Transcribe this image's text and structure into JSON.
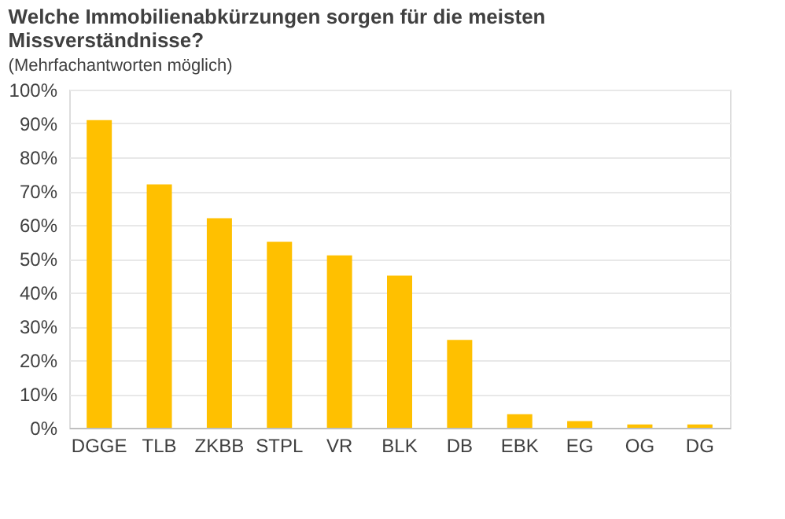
{
  "chart_data": {
    "type": "bar",
    "title": "Welche Immobilienabkürzungen sorgen für die meisten Missverständnisse?",
    "subtitle": "(Mehrfachantworten möglich)",
    "categories": [
      "DGGE",
      "TLB",
      "ZKBB",
      "STPL",
      "VR",
      "BLK",
      "DB",
      "EBK",
      "EG",
      "OG",
      "DG"
    ],
    "values": [
      91,
      72,
      62,
      55,
      51,
      45,
      26,
      4,
      2,
      1,
      1
    ],
    "color": "#ffc000",
    "ylim": [
      0,
      100
    ],
    "yticks": [
      {
        "value": 0,
        "label": "0%"
      },
      {
        "value": 10,
        "label": "10%"
      },
      {
        "value": 20,
        "label": "20%"
      },
      {
        "value": 30,
        "label": "30%"
      },
      {
        "value": 40,
        "label": "40%"
      },
      {
        "value": 50,
        "label": "50%"
      },
      {
        "value": 60,
        "label": "60%"
      },
      {
        "value": 70,
        "label": "70%"
      },
      {
        "value": 80,
        "label": "80%"
      },
      {
        "value": 90,
        "label": "90%"
      },
      {
        "value": 100,
        "label": "100%"
      }
    ],
    "grid": "y"
  }
}
